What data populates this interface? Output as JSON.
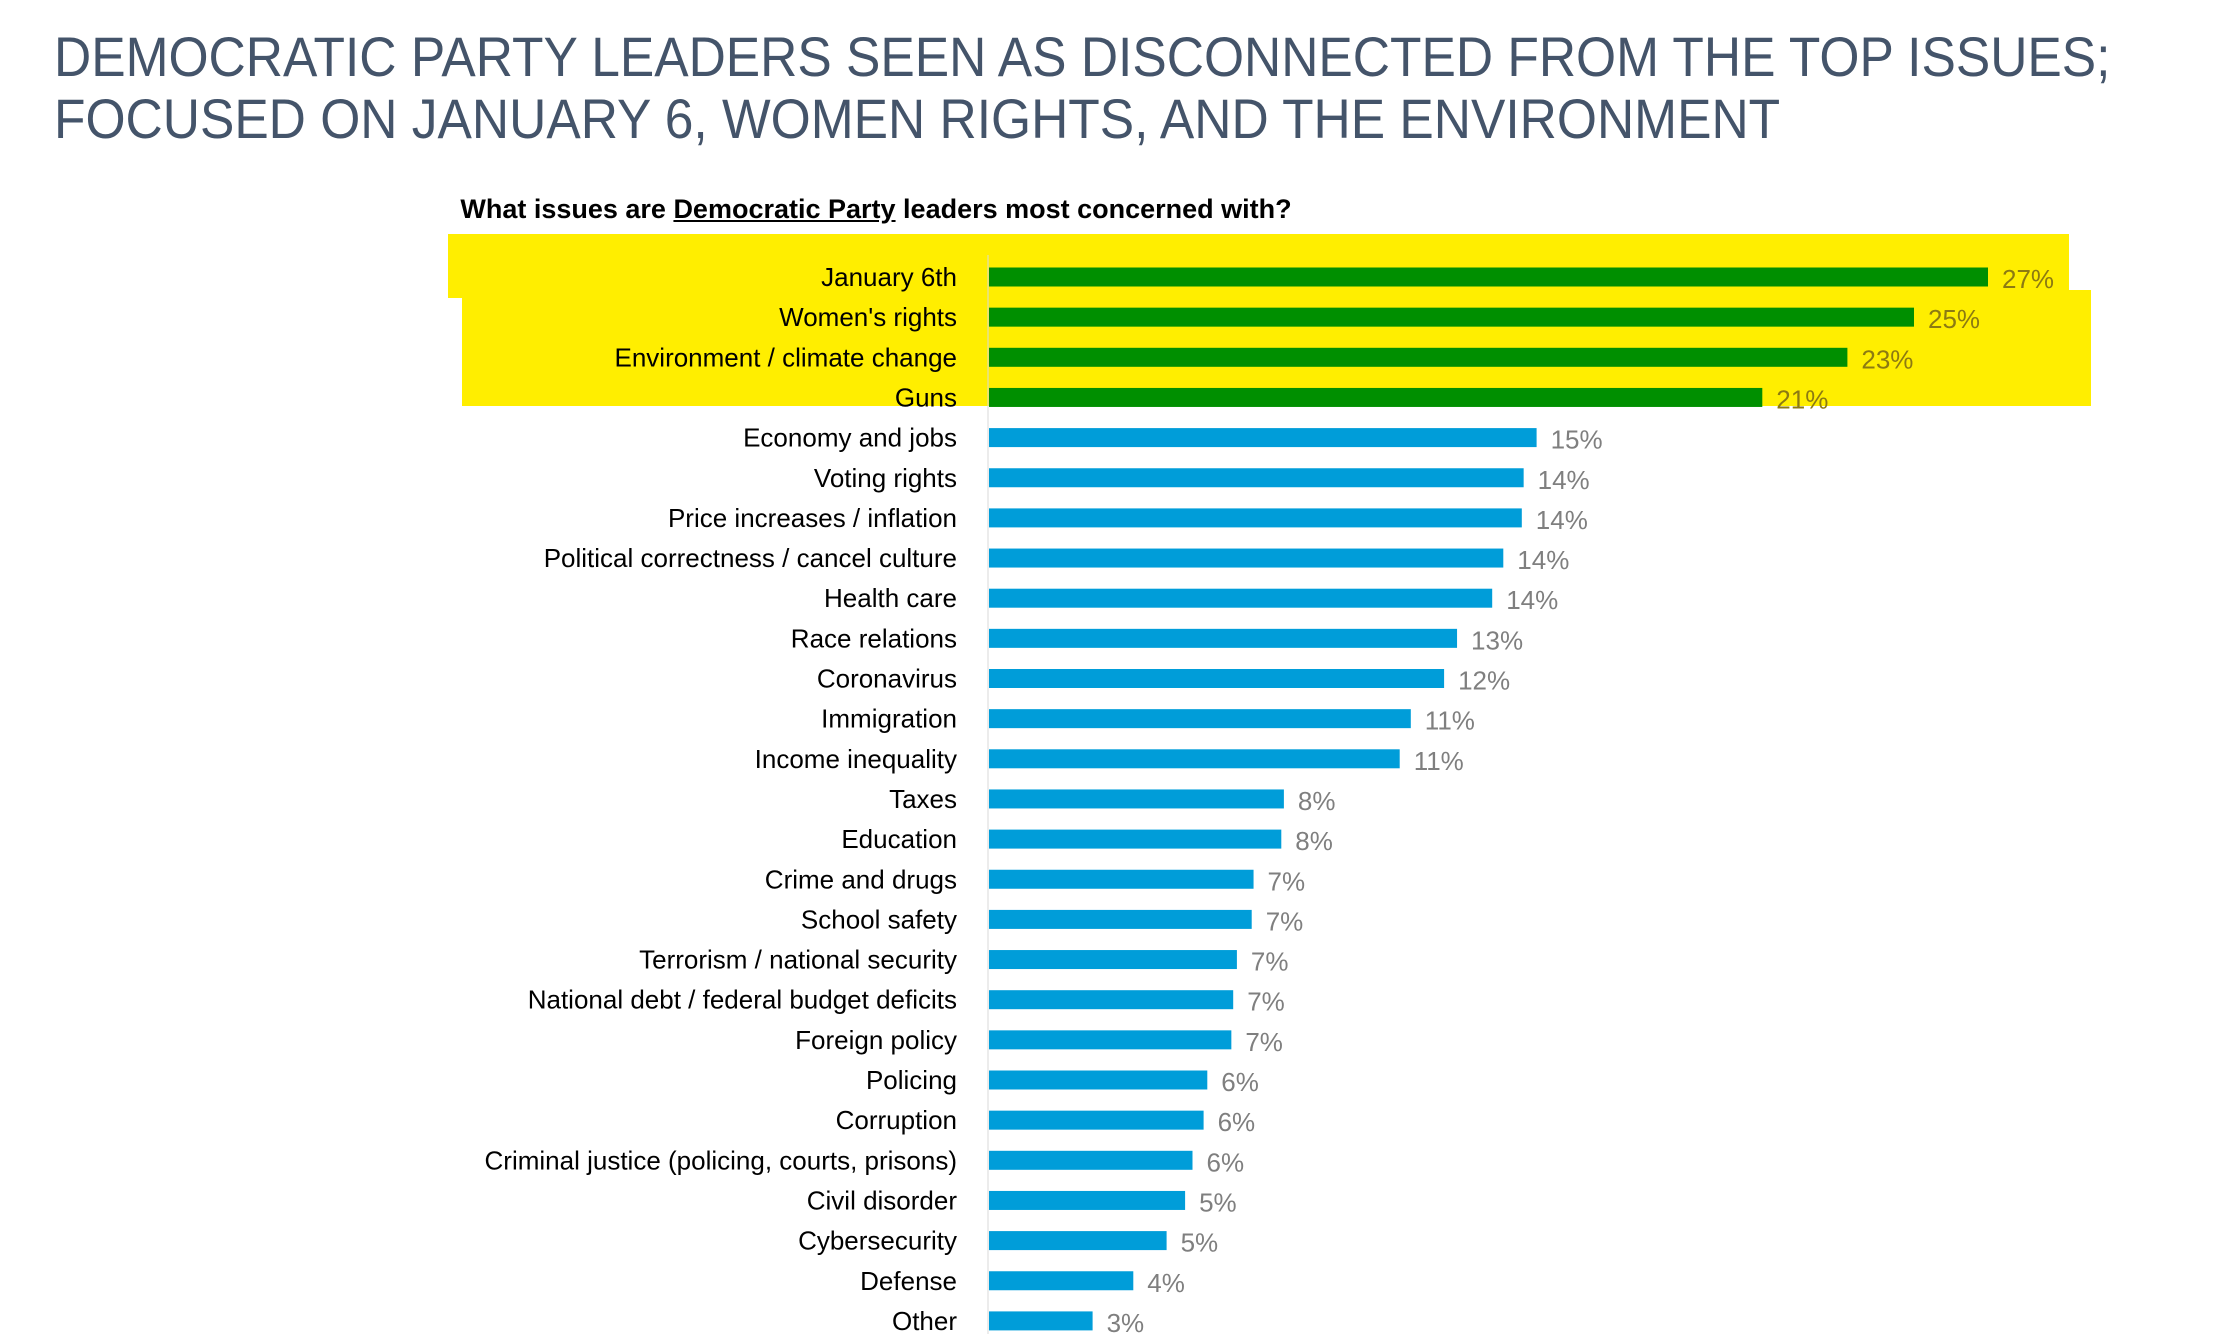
{
  "title_lines": [
    "DEMOCRATIC PARTY LEADERS SEEN AS DISCONNECTED FROM THE TOP ISSUES;",
    "FOCUSED ON JANUARY 6, WOMEN RIGHTS, AND THE ENVIRONMENT"
  ],
  "chart_data": {
    "type": "bar",
    "orientation": "horizontal",
    "title_parts": {
      "before": "What issues are ",
      "underlined": "Democratic Party",
      "after": " leaders most concerned with?"
    },
    "categories": [
      "January 6th",
      "Women's rights",
      "Environment / climate change",
      "Guns",
      "Economy and jobs",
      "Voting rights",
      "Price increases / inflation",
      "Political correctness / cancel culture",
      "Health care",
      "Race relations",
      "Coronavirus",
      "Immigration",
      "Income inequality",
      "Taxes",
      "Education",
      "Crime and drugs",
      "School safety",
      "Terrorism / national security",
      "National debt / federal budget deficits",
      "Foreign policy",
      "Policing",
      "Corruption",
      "Criminal justice (policing, courts, prisons)",
      "Civil disorder",
      "Cybersecurity",
      "Defense",
      "Other"
    ],
    "values": [
      27.0,
      25.0,
      23.2,
      20.9,
      14.8,
      14.45,
      14.4,
      13.9,
      13.6,
      12.65,
      12.3,
      11.4,
      11.1,
      7.97,
      7.9,
      7.15,
      7.1,
      6.7,
      6.6,
      6.55,
      5.9,
      5.8,
      5.5,
      5.3,
      4.8,
      3.9,
      2.8
    ],
    "data_labels": [
      "27%",
      "25%",
      "23%",
      "21%",
      "15%",
      "14%",
      "14%",
      "14%",
      "14%",
      "13%",
      "12%",
      "11%",
      "11%",
      "8%",
      "8%",
      "7%",
      "7%",
      "7%",
      "7%",
      "7%",
      "6%",
      "6%",
      "6%",
      "5%",
      "5%",
      "4%",
      "3%"
    ],
    "highlighted_count": 4,
    "colors": {
      "highlight_bar": "#008f00",
      "bar": "#009dd9",
      "highlight_background": "#ffee00",
      "title": "#44546a",
      "data_label": "#7f7f7f"
    },
    "xlim": [
      0,
      30
    ],
    "grid": false,
    "legend": "none"
  }
}
